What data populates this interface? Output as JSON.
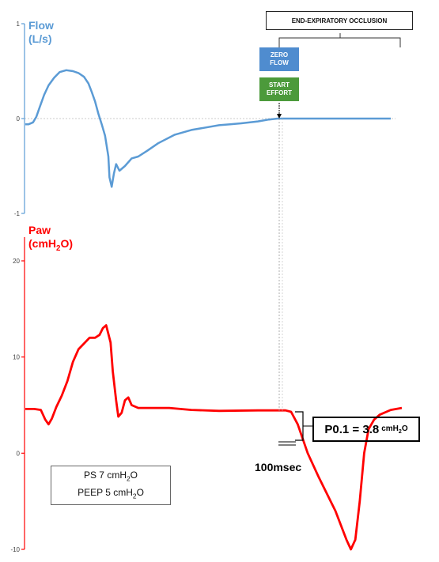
{
  "chart_data": [
    {
      "type": "line",
      "title": "Flow\n(L/s)",
      "ylim": [
        -1,
        1
      ],
      "y_ticks": [
        "1",
        "0",
        "-1"
      ],
      "series": [
        {
          "color": "#5b9bd5",
          "points": [
            [
              0,
              -0.06
            ],
            [
              3,
              -0.06
            ],
            [
              7,
              -0.04
            ],
            [
              10,
              0.02
            ],
            [
              13,
              0.12
            ],
            [
              17,
              0.25
            ],
            [
              21,
              0.35
            ],
            [
              26,
              0.43
            ],
            [
              31,
              0.49
            ],
            [
              37,
              0.51
            ],
            [
              43,
              0.5
            ],
            [
              48,
              0.48
            ],
            [
              53,
              0.44
            ],
            [
              57,
              0.37
            ],
            [
              60,
              0.28
            ],
            [
              63,
              0.18
            ],
            [
              66,
              0.05
            ],
            [
              69,
              -0.06
            ],
            [
              72,
              -0.18
            ],
            [
              75,
              -0.4
            ],
            [
              76,
              -0.62
            ],
            [
              78,
              -0.72
            ],
            [
              80,
              -0.58
            ],
            [
              82,
              -0.48
            ],
            [
              85,
              -0.55
            ],
            [
              90,
              -0.5
            ],
            [
              96,
              -0.42
            ],
            [
              102,
              -0.4
            ],
            [
              110,
              -0.34
            ],
            [
              120,
              -0.26
            ],
            [
              135,
              -0.17
            ],
            [
              150,
              -0.12
            ],
            [
              165,
              -0.09
            ],
            [
              175,
              -0.07
            ],
            [
              185,
              -0.06
            ],
            [
              195,
              -0.05
            ],
            [
              210,
              -0.03
            ],
            [
              220,
              -0.01
            ],
            [
              228,
              0
            ],
            [
              250,
              0
            ],
            [
              300,
              0
            ],
            [
              330,
              0
            ]
          ]
        }
      ]
    },
    {
      "type": "line",
      "title": "Paw\n(cmH2O)",
      "ylim": [
        -10,
        20
      ],
      "y_ticks": [
        "20",
        "10",
        "0",
        "-10"
      ],
      "series": [
        {
          "color": "#ff0000",
          "points": [
            [
              0,
              4.6
            ],
            [
              8,
              4.6
            ],
            [
              14,
              4.5
            ],
            [
              18,
              3.5
            ],
            [
              21,
              3.0
            ],
            [
              24,
              3.6
            ],
            [
              28,
              4.8
            ],
            [
              33,
              6.0
            ],
            [
              38,
              7.5
            ],
            [
              43,
              9.5
            ],
            [
              48,
              10.8
            ],
            [
              53,
              11.4
            ],
            [
              58,
              12.0
            ],
            [
              63,
              12.0
            ],
            [
              67,
              12.3
            ],
            [
              70,
              13.0
            ],
            [
              73,
              13.3
            ],
            [
              77,
              11.5
            ],
            [
              79,
              8.5
            ],
            [
              82,
              5.5
            ],
            [
              84,
              3.8
            ],
            [
              87,
              4.2
            ],
            [
              90,
              5.5
            ],
            [
              93,
              5.8
            ],
            [
              96,
              5.0
            ],
            [
              102,
              4.7
            ],
            [
              130,
              4.7
            ],
            [
              150,
              4.5
            ],
            [
              175,
              4.4
            ],
            [
              210,
              4.45
            ],
            [
              235,
              4.45
            ],
            [
              240,
              4.3
            ],
            [
              246,
              3.0
            ],
            [
              255,
              0
            ],
            [
              265,
              -2.5
            ],
            [
              280,
              -6.0
            ],
            [
              290,
              -9.0
            ],
            [
              294,
              -10.0
            ],
            [
              298,
              -9.0
            ],
            [
              302,
              -5.0
            ],
            [
              306,
              0
            ],
            [
              310,
              2.5
            ],
            [
              315,
              3.5
            ],
            [
              320,
              4.0
            ],
            [
              330,
              4.5
            ],
            [
              340,
              4.7
            ]
          ]
        }
      ]
    }
  ],
  "annotations": {
    "occlusion_label": "END-EXPIRATORY OCCLUSION",
    "zero_flow": [
      "ZERO",
      "FLOW"
    ],
    "start_effort": [
      "START",
      "EFFORT"
    ],
    "p01_text": "P0.1 = 3.8",
    "p01_unit": "cmH2O",
    "msec_label": "100msec",
    "settings": [
      "PS 7 cmH2O",
      "PEEP 5 cmH2O"
    ]
  },
  "colors": {
    "flow": "#5b9bd5",
    "paw": "#ff0000",
    "zero_flow_box": "#4f8ccf",
    "start_effort_box": "#4c9a3b"
  }
}
